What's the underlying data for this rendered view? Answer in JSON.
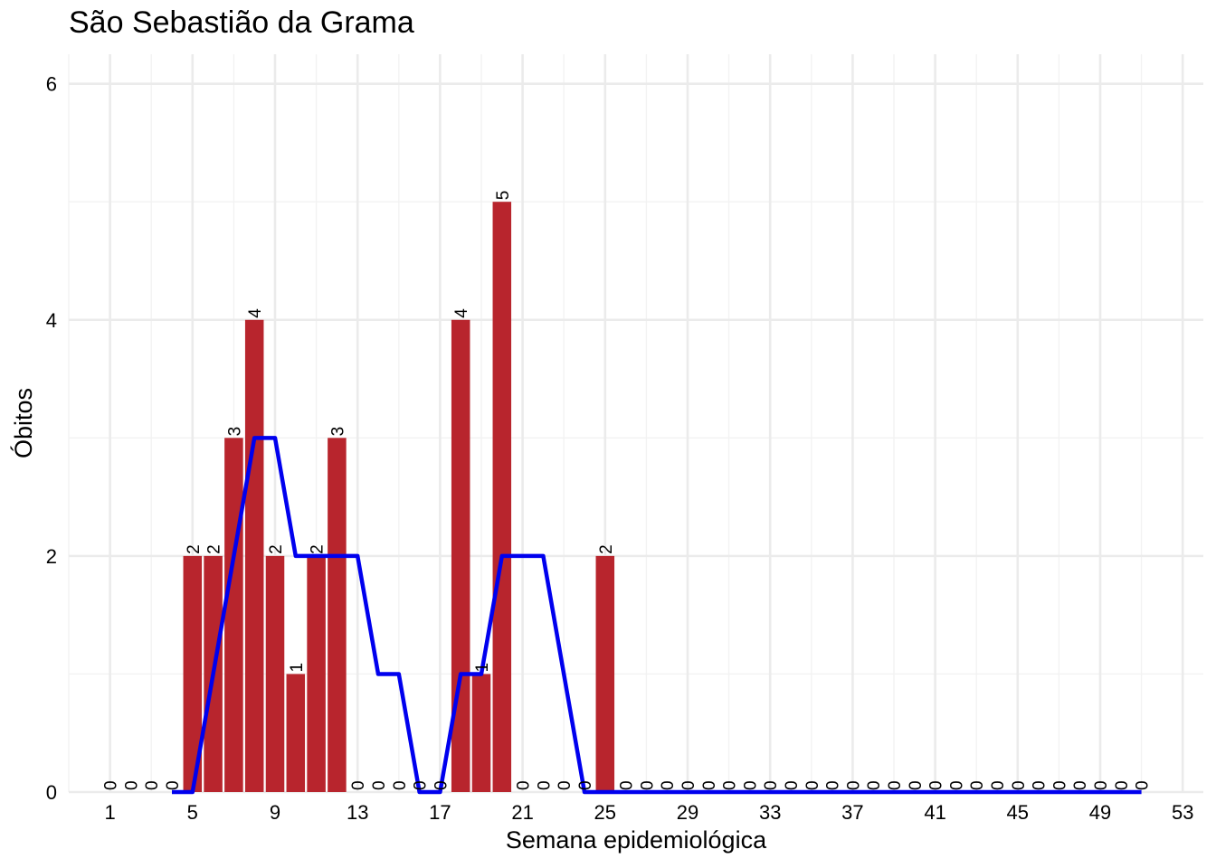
{
  "chart_data": {
    "type": "bar",
    "title": "São Sebastião da Grama",
    "xlabel": "Semana epidemiológica",
    "ylabel": "Óbitos",
    "x": [
      1,
      2,
      3,
      4,
      5,
      6,
      7,
      8,
      9,
      10,
      11,
      12,
      13,
      14,
      15,
      16,
      17,
      18,
      19,
      20,
      21,
      22,
      23,
      24,
      25,
      26,
      27,
      28,
      29,
      30,
      31,
      32,
      33,
      34,
      35,
      36,
      37,
      38,
      39,
      40,
      41,
      42,
      43,
      44,
      45,
      46,
      47,
      48,
      49,
      50,
      51
    ],
    "values": [
      0,
      0,
      0,
      0,
      2,
      2,
      3,
      4,
      2,
      1,
      2,
      3,
      0,
      0,
      0,
      0,
      0,
      4,
      1,
      5,
      0,
      0,
      0,
      0,
      2,
      0,
      0,
      0,
      0,
      0,
      0,
      0,
      0,
      0,
      0,
      0,
      0,
      0,
      0,
      0,
      0,
      0,
      0,
      0,
      0,
      0,
      0,
      0,
      0,
      0,
      0
    ],
    "series": [
      {
        "values": [
          0,
          0,
          0,
          0,
          2,
          2,
          3,
          4,
          2,
          1,
          2,
          3,
          0,
          0,
          0,
          0,
          0,
          4,
          1,
          5,
          0,
          0,
          0,
          0,
          2,
          0,
          0,
          0,
          0,
          0,
          0,
          0,
          0,
          0,
          0,
          0,
          0,
          0,
          0,
          0,
          0,
          0,
          0,
          0,
          0,
          0,
          0,
          0,
          0,
          0,
          0
        ],
        "color": "#B8252D",
        "kind": "bar"
      },
      {
        "x": [
          4,
          5,
          6,
          7,
          8,
          9,
          10,
          11,
          12,
          13,
          14,
          15,
          16,
          17,
          18,
          19,
          20,
          21,
          22,
          23,
          24,
          25,
          26,
          27,
          28,
          29,
          30,
          31,
          32,
          33,
          34,
          35,
          36,
          37,
          38,
          39,
          40,
          41,
          42,
          43,
          44,
          45,
          46,
          47,
          48,
          49,
          50,
          51
        ],
        "values": [
          0,
          0,
          1,
          2,
          3,
          3,
          2,
          2,
          2,
          2,
          1,
          1,
          0,
          0,
          1,
          1,
          2,
          2,
          2,
          1,
          0,
          0,
          0,
          0,
          0,
          0,
          0,
          0,
          0,
          0,
          0,
          0,
          0,
          0,
          0,
          0,
          0,
          0,
          0,
          0,
          0,
          0,
          0,
          0,
          0,
          0,
          0,
          0
        ],
        "color": "#0000EE",
        "kind": "line"
      }
    ],
    "xticks": [
      1,
      5,
      9,
      13,
      17,
      21,
      25,
      29,
      33,
      37,
      41,
      45,
      49,
      53
    ],
    "yticks": [
      0,
      2,
      4,
      6
    ],
    "xlim": [
      -1,
      54
    ],
    "ylim": [
      0,
      6.25
    ],
    "grid": true
  }
}
